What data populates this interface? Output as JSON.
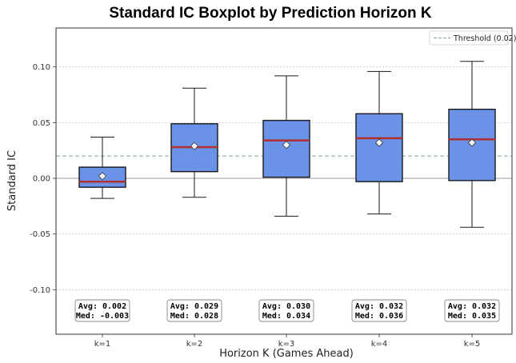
{
  "chart_data": {
    "type": "boxplot",
    "title": "Standard IC Boxplot by Prediction Horizon K",
    "xlabel": "Horizon K (Games Ahead)",
    "ylabel": "Standard IC",
    "ylim": [
      -0.14,
      0.135
    ],
    "yticks": [
      "-0.10",
      "-0.05",
      "0.00",
      "0.05",
      "0.10"
    ],
    "ytick_values": [
      -0.1,
      -0.05,
      0.0,
      0.05,
      0.1
    ],
    "grid": "horizontal dotted",
    "categories": [
      "k=1",
      "k=2",
      "k=3",
      "k=4",
      "k=5"
    ],
    "boxes": [
      {
        "whisker_low": -0.018,
        "q1": -0.008,
        "median": -0.003,
        "q3": 0.01,
        "whisker_high": 0.037,
        "mean": 0.002
      },
      {
        "whisker_low": -0.017,
        "q1": 0.006,
        "median": 0.028,
        "q3": 0.049,
        "whisker_high": 0.081,
        "mean": 0.029
      },
      {
        "whisker_low": -0.034,
        "q1": 0.001,
        "median": 0.034,
        "q3": 0.052,
        "whisker_high": 0.092,
        "mean": 0.03
      },
      {
        "whisker_low": -0.032,
        "q1": -0.003,
        "median": 0.036,
        "q3": 0.058,
        "whisker_high": 0.096,
        "mean": 0.032
      },
      {
        "whisker_low": -0.044,
        "q1": -0.002,
        "median": 0.035,
        "q3": 0.062,
        "whisker_high": 0.105,
        "mean": 0.032
      }
    ],
    "annotations": [
      {
        "avg": "Avg: 0.002",
        "med": "Med: -0.003"
      },
      {
        "avg": "Avg: 0.029",
        "med": "Med: 0.028"
      },
      {
        "avg": "Avg: 0.030",
        "med": "Med: 0.034"
      },
      {
        "avg": "Avg: 0.032",
        "med": "Med: 0.036"
      },
      {
        "avg": "Avg: 0.032",
        "med": "Med: 0.035"
      }
    ],
    "threshold": {
      "value": 0.02,
      "label": "Threshold (0.02)"
    },
    "zero_line": 0.0,
    "legend_position": "top-right",
    "colors": {
      "box_fill": "#6a92e6",
      "box_edge": "#1a1a1a",
      "median": "#b03030",
      "mean_marker": "#ffffff",
      "threshold": "#7fa88f",
      "grid": "#c8c8c8"
    }
  }
}
